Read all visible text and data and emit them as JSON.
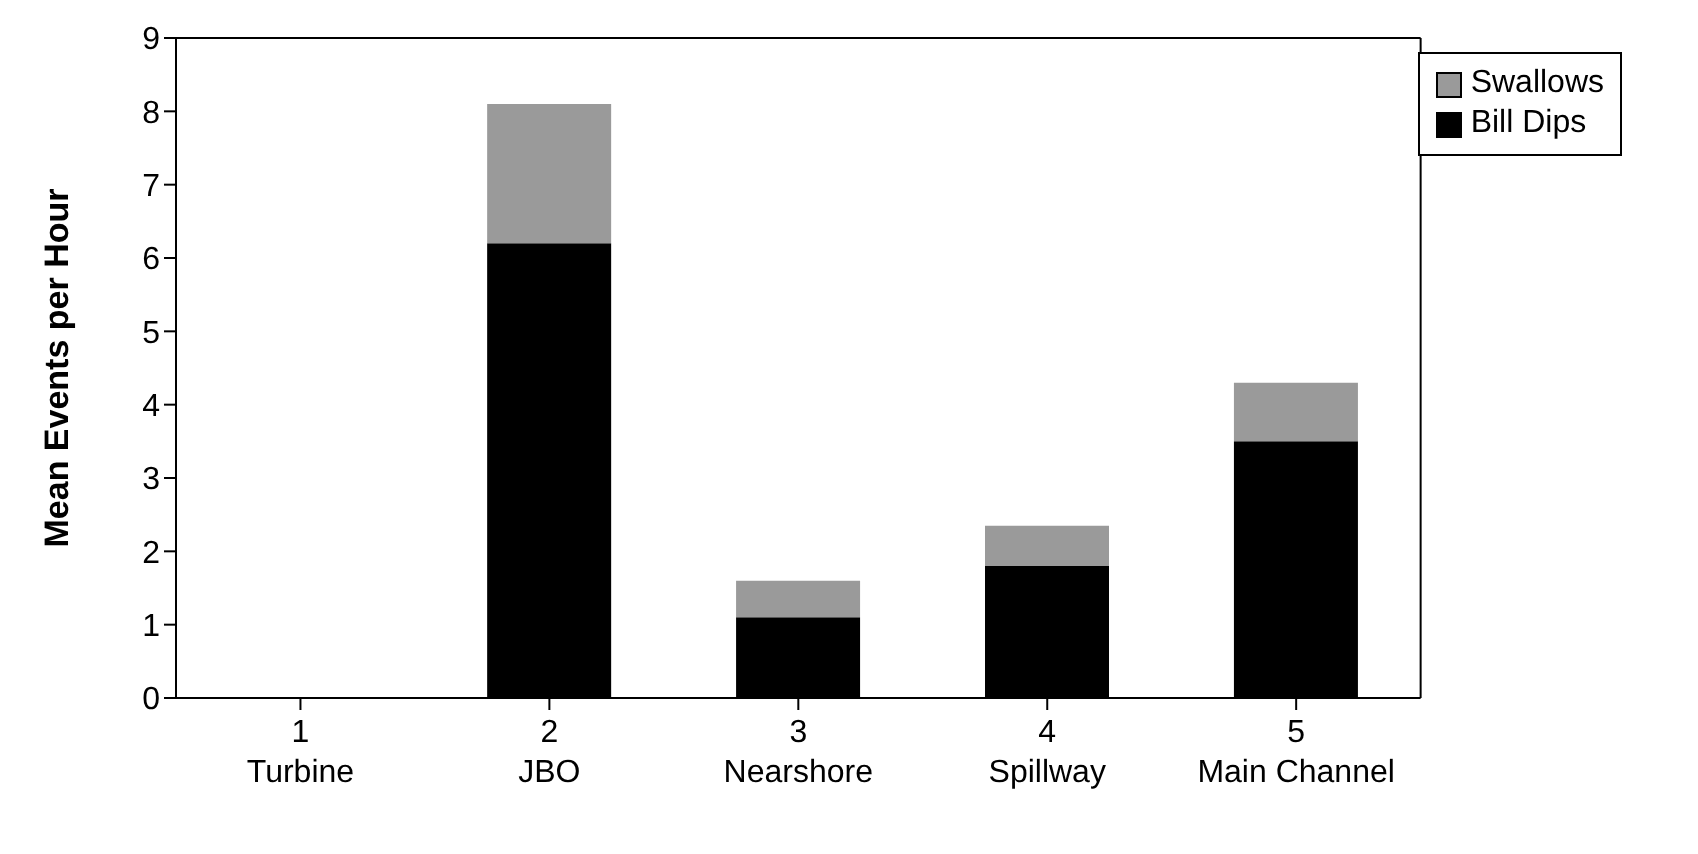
{
  "chart_data": {
    "type": "bar",
    "stacked": true,
    "ylabel": "Mean Events per Hour",
    "categories": [
      "1\nTurbine",
      "2\nJBO",
      "3\nNearshore",
      "4\nSpillway",
      "5\nMain Channel"
    ],
    "series": [
      {
        "name": "Bill Dips",
        "color": "#000000",
        "values": [
          0,
          6.2,
          1.1,
          1.8,
          3.5
        ]
      },
      {
        "name": "Swallows",
        "color": "#9a9a9a",
        "values": [
          0,
          1.9,
          0.5,
          0.55,
          0.8
        ]
      }
    ],
    "ylim": [
      0,
      9
    ],
    "yticks": [
      0,
      1,
      2,
      3,
      4,
      5,
      6,
      7,
      8,
      9
    ],
    "grid": false,
    "legend": "top right"
  }
}
